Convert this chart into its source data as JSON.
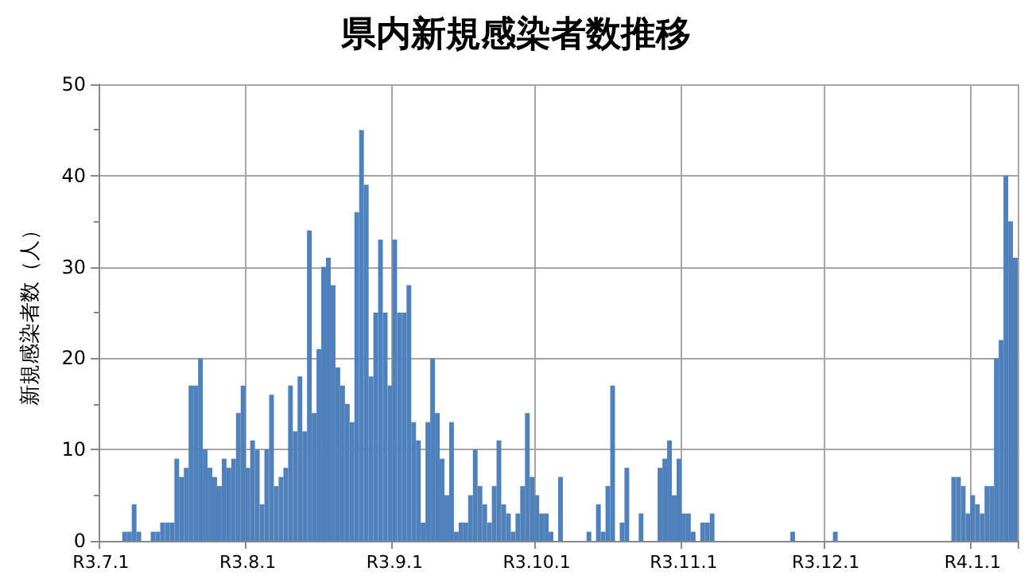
{
  "chart_data": {
    "type": "bar",
    "title": "県内新規感染者数推移",
    "ylabel": "新規感染者数（人）",
    "categories": [
      "R3.7.1",
      null,
      null,
      null,
      null,
      null,
      null,
      null,
      null,
      null,
      null,
      null,
      null,
      null,
      null,
      null,
      null,
      null,
      null,
      null,
      null,
      null,
      null,
      null,
      null,
      null,
      null,
      null,
      null,
      null,
      null,
      "R3.8.1",
      null,
      null,
      null,
      null,
      null,
      null,
      null,
      null,
      null,
      null,
      null,
      null,
      null,
      null,
      null,
      null,
      null,
      null,
      null,
      null,
      null,
      null,
      null,
      null,
      null,
      null,
      null,
      null,
      null,
      null,
      "R3.9.1",
      null,
      null,
      null,
      null,
      null,
      null,
      null,
      null,
      null,
      null,
      null,
      null,
      null,
      null,
      null,
      null,
      null,
      null,
      null,
      null,
      null,
      null,
      null,
      null,
      null,
      null,
      null,
      null,
      null,
      "R3.10.1",
      null,
      null,
      null,
      null,
      null,
      null,
      null,
      null,
      null,
      null,
      null,
      null,
      null,
      null,
      null,
      null,
      null,
      null,
      null,
      null,
      null,
      null,
      null,
      null,
      null,
      null,
      null,
      null,
      null,
      null,
      "R3.11.1",
      null,
      null,
      null,
      null,
      null,
      null,
      null,
      null,
      null,
      null,
      null,
      null,
      null,
      null,
      null,
      null,
      null,
      null,
      null,
      null,
      null,
      null,
      null,
      null,
      null,
      null,
      null,
      null,
      null,
      "R3.12.1",
      null,
      null,
      null,
      null,
      null,
      null,
      null,
      null,
      null,
      null,
      null,
      null,
      null,
      null,
      null,
      null,
      null,
      null,
      null,
      null,
      null,
      null,
      null,
      null,
      null,
      null,
      null,
      null,
      null,
      null,
      "R4.1.1",
      null,
      null,
      null,
      null,
      null,
      null,
      null,
      null,
      null
    ],
    "values": [
      0,
      0,
      0,
      0,
      0,
      1,
      1,
      4,
      1,
      0,
      0,
      1,
      1,
      2,
      2,
      2,
      9,
      7,
      8,
      17,
      17,
      20,
      10,
      8,
      7,
      6,
      9,
      8,
      9,
      14,
      17,
      8,
      11,
      10,
      4,
      10,
      16,
      6,
      7,
      8,
      17,
      12,
      18,
      12,
      34,
      14,
      21,
      30,
      31,
      28,
      19,
      17,
      15,
      13,
      36,
      45,
      39,
      18,
      25,
      33,
      25,
      17,
      33,
      25,
      25,
      28,
      13,
      11,
      2,
      13,
      20,
      14,
      9,
      5,
      13,
      1,
      2,
      2,
      5,
      10,
      6,
      4,
      2,
      6,
      11,
      4,
      3,
      1,
      3,
      6,
      14,
      7,
      5,
      3,
      3,
      1,
      0,
      7,
      0,
      0,
      0,
      0,
      0,
      1,
      0,
      4,
      1,
      6,
      17,
      0,
      2,
      8,
      0,
      0,
      3,
      0,
      0,
      0,
      8,
      9,
      11,
      5,
      9,
      3,
      3,
      1,
      0,
      2,
      2,
      3,
      0,
      0,
      0,
      0,
      0,
      0,
      0,
      0,
      0,
      0,
      0,
      0,
      0,
      0,
      0,
      0,
      1,
      0,
      0,
      0,
      0,
      0,
      0,
      0,
      0,
      1,
      0,
      0,
      0,
      0,
      0,
      0,
      0,
      0,
      0,
      0,
      0,
      0,
      0,
      0,
      0,
      0,
      0,
      0,
      0,
      0,
      0,
      0,
      0,
      0,
      7,
      7,
      6,
      3,
      5,
      4,
      3,
      6,
      6,
      20,
      22,
      40,
      35,
      31
    ],
    "color": "#4f81bd",
    "ylim": [
      0,
      50
    ],
    "yticks": [
      0,
      10,
      20,
      30,
      40,
      50
    ],
    "grid": true
  }
}
